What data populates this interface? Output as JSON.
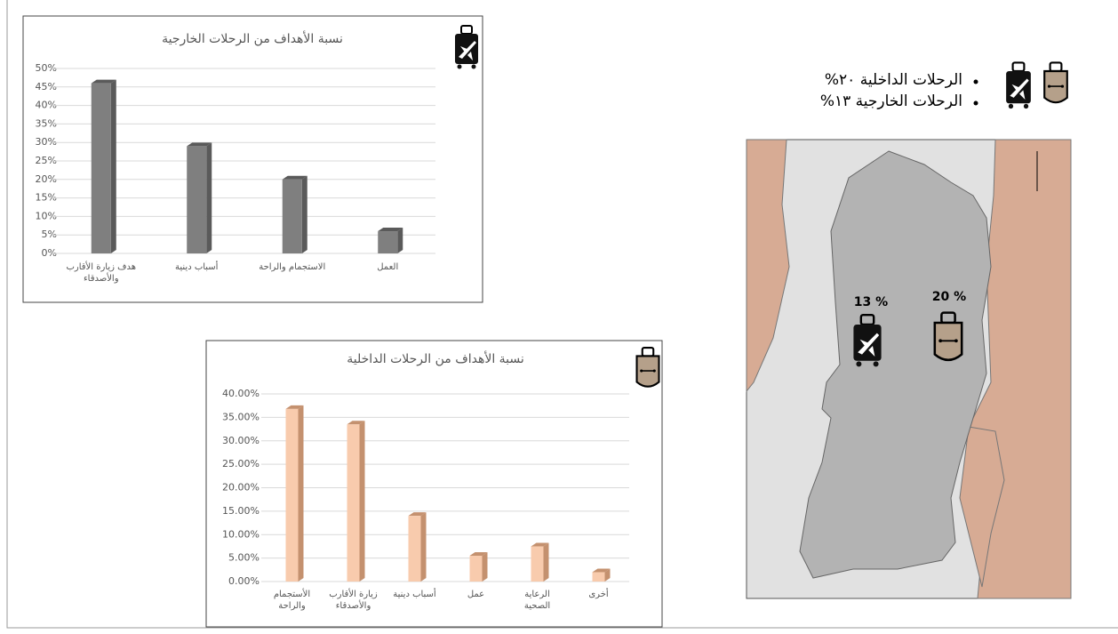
{
  "chart_data": [
    {
      "type": "bar",
      "title": "نسبة الأهداف من الرحلات الخارجية",
      "categories": [
        "هدف زيارة الأقارب\nوالأصدقاء",
        "أسباب دينية",
        "الاستجمام والراحة",
        "العمل"
      ],
      "values": [
        46,
        29,
        20,
        6
      ],
      "color": "#7f7f7f",
      "side_color": "#5a5a5a",
      "ylim": [
        0,
        50
      ],
      "yticks": [
        {
          "value": 0,
          "label": "0%"
        },
        {
          "value": 5,
          "label": "5%"
        },
        {
          "value": 10,
          "label": "10%"
        },
        {
          "value": 15,
          "label": "15%"
        },
        {
          "value": 20,
          "label": "20%"
        },
        {
          "value": 25,
          "label": "25%"
        },
        {
          "value": 30,
          "label": "30%"
        },
        {
          "value": 35,
          "label": "35%"
        },
        {
          "value": 40,
          "label": "40%"
        },
        {
          "value": 45,
          "label": "45%"
        },
        {
          "value": 50,
          "label": "50%"
        }
      ],
      "grid": true
    },
    {
      "type": "bar",
      "title": "نسبة الأهداف من الرحلات الداخلية",
      "categories": [
        "الأستجمام\nوالراحة",
        "زيارة الأقارب\nوالأصدقاء",
        "أسباب دينية",
        "عمل",
        "الرعاية\nالصحية",
        "أخرى"
      ],
      "values": [
        36.8,
        33.5,
        14,
        5.5,
        7.5,
        2
      ],
      "color": "#f8cbad",
      "side_color": "#c4916f",
      "ylim": [
        0,
        40
      ],
      "yticks": [
        {
          "value": 0,
          "label": "0.00%"
        },
        {
          "value": 5,
          "label": "5.00%"
        },
        {
          "value": 10,
          "label": "10.00%"
        },
        {
          "value": 15,
          "label": "15.00%"
        },
        {
          "value": 20,
          "label": "20.00%"
        },
        {
          "value": 25,
          "label": "25.00%"
        },
        {
          "value": 30,
          "label": "30.00%"
        },
        {
          "value": 35,
          "label": "35.00%"
        },
        {
          "value": 40,
          "label": "40.00%"
        }
      ],
      "grid": true
    }
  ],
  "legend": [
    "الرحلات الداخلية ٢٠%",
    "الرحلات الخارجية ١٣%"
  ],
  "map": {
    "labels": [
      "13 %",
      "20 %"
    ]
  }
}
